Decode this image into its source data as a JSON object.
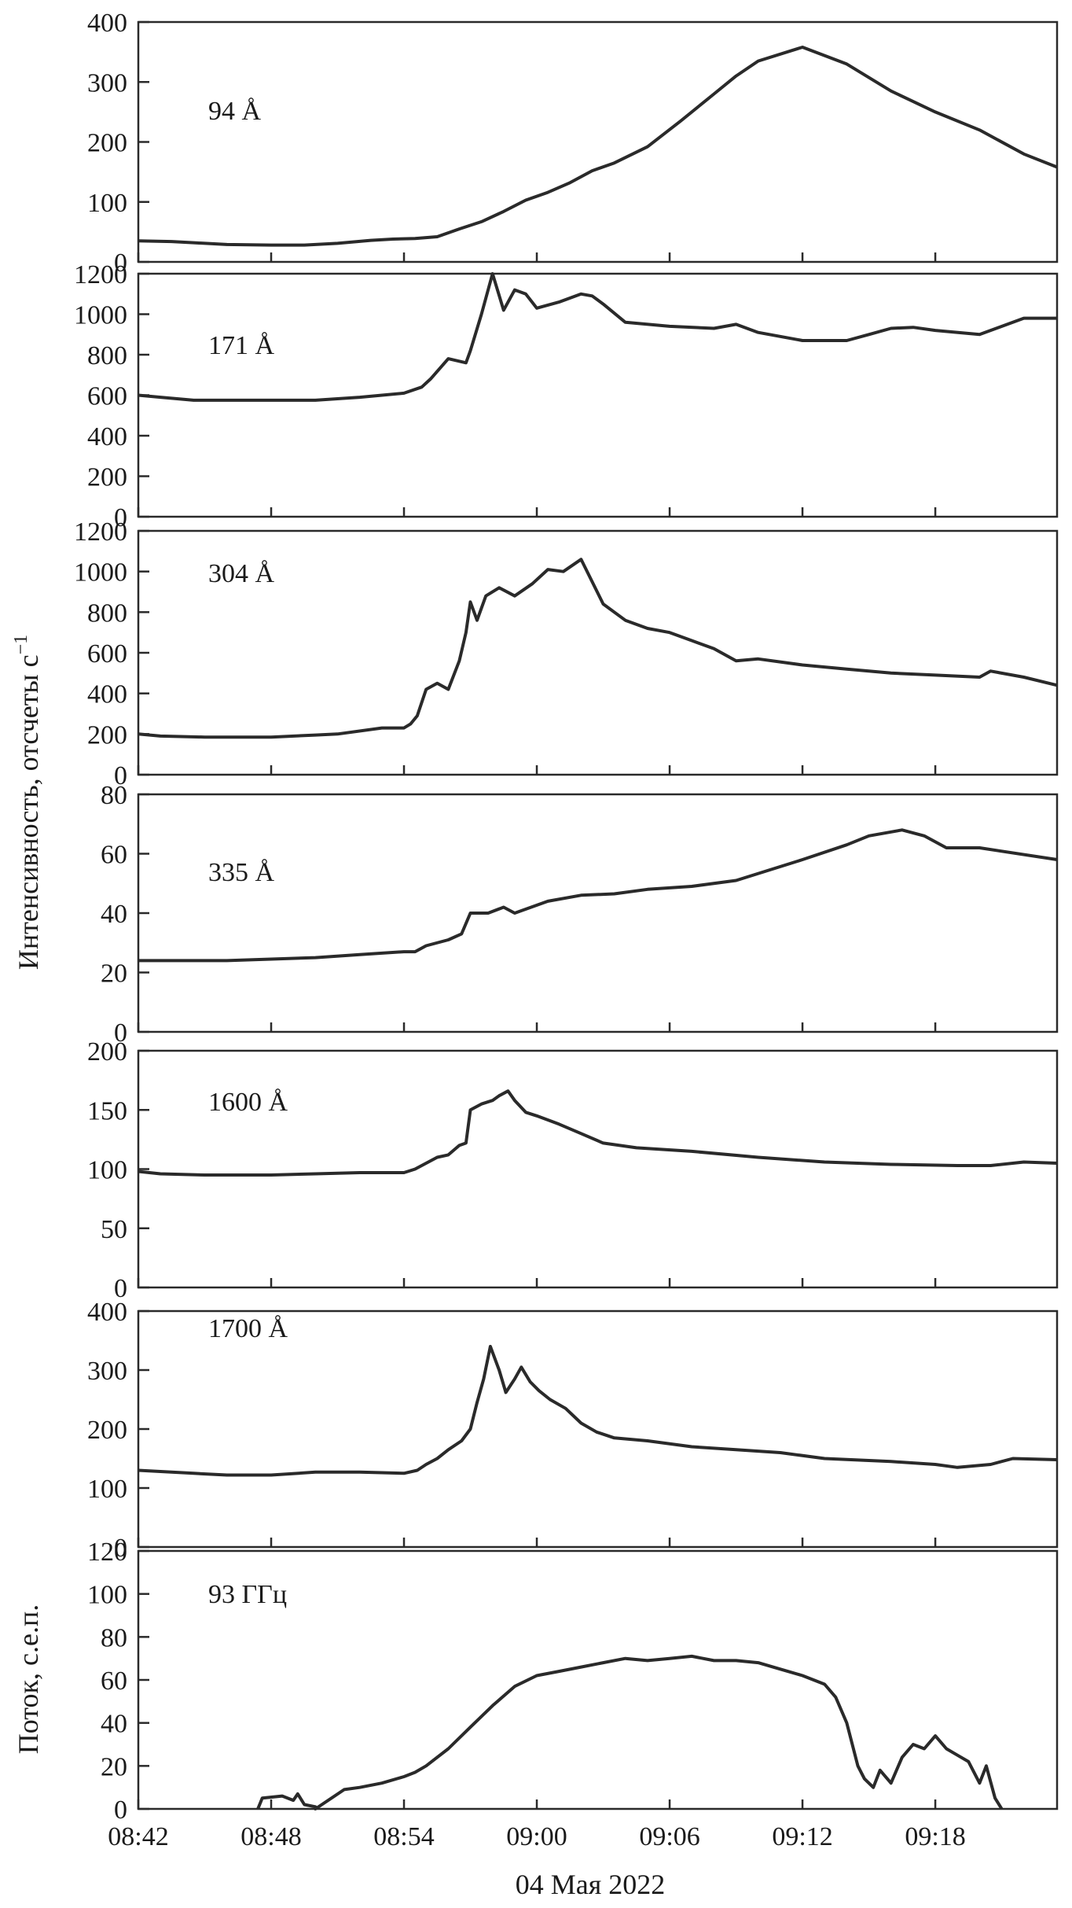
{
  "chart_data": [
    {
      "type": "line",
      "label": "94 Å",
      "ylim": [
        0,
        400
      ],
      "yticks": [
        "0",
        "100",
        "200",
        "300",
        "400"
      ],
      "x": [
        0,
        1.5,
        2.5,
        4,
        6,
        7.5,
        9,
        10.5,
        11.5,
        12.5,
        13.5,
        14.5,
        15.5,
        16.5,
        17.5,
        18.5,
        19.5,
        20.5,
        21.5,
        23,
        24.5,
        26,
        27,
        28,
        30,
        32,
        34,
        36,
        38,
        40,
        41.5
      ],
      "values": [
        35,
        34,
        32,
        29,
        28,
        28,
        31,
        36,
        38,
        39,
        42,
        55,
        67,
        84,
        103,
        116,
        132,
        152,
        165,
        192,
        235,
        280,
        310,
        335,
        358,
        330,
        285,
        250,
        220,
        180,
        158
      ]
    },
    {
      "type": "line",
      "label": "171 Å",
      "ylim": [
        0,
        1200
      ],
      "yticks": [
        "0",
        "200",
        "400",
        "600",
        "800",
        "1000",
        "1200"
      ],
      "x": [
        0,
        1,
        2.5,
        4,
        6,
        8,
        10,
        12,
        12.8,
        13.2,
        14,
        14.8,
        15,
        15.5,
        16,
        16.5,
        17,
        17.5,
        18,
        19,
        20,
        20.5,
        21,
        22,
        24,
        26,
        27,
        28,
        30,
        32,
        33,
        34,
        35,
        36,
        38,
        40,
        41.5
      ],
      "values": [
        600,
        590,
        575,
        575,
        575,
        575,
        590,
        610,
        640,
        680,
        780,
        760,
        820,
        1000,
        1200,
        1020,
        1120,
        1100,
        1030,
        1060,
        1100,
        1090,
        1050,
        960,
        940,
        930,
        950,
        910,
        870,
        870,
        900,
        930,
        935,
        920,
        900,
        980,
        980
      ]
    },
    {
      "type": "line",
      "label": "304 Å",
      "ylim": [
        0,
        1200
      ],
      "yticks": [
        "0",
        "200",
        "400",
        "600",
        "800",
        "1000",
        "1200"
      ],
      "x": [
        0,
        1,
        3,
        6,
        8,
        9,
        11,
        12,
        12.3,
        12.6,
        13,
        13.5,
        14,
        14.5,
        14.8,
        15,
        15.3,
        15.7,
        16.3,
        17,
        17.8,
        18.5,
        19.2,
        20,
        21,
        22,
        23,
        24,
        25,
        26,
        27,
        28,
        30,
        32,
        34,
        36,
        38,
        38.5,
        40,
        41.5
      ],
      "values": [
        200,
        190,
        185,
        185,
        195,
        200,
        230,
        230,
        250,
        290,
        420,
        450,
        420,
        560,
        700,
        850,
        760,
        880,
        920,
        880,
        940,
        1010,
        1000,
        1060,
        840,
        760,
        720,
        700,
        660,
        620,
        560,
        570,
        540,
        520,
        500,
        490,
        480,
        510,
        480,
        440
      ]
    },
    {
      "type": "line",
      "label": "335 Å",
      "ylim": [
        0,
        80
      ],
      "yticks": [
        "0",
        "20",
        "40",
        "60",
        "80"
      ],
      "x": [
        0,
        2,
        4,
        6,
        8,
        10,
        12,
        12.5,
        13,
        14,
        14.6,
        15,
        15.8,
        16.5,
        17,
        18.5,
        20,
        21.5,
        23,
        25,
        27,
        30,
        32,
        33,
        34.5,
        35.5,
        36.5,
        38,
        41.5
      ],
      "values": [
        24,
        24,
        24,
        24.5,
        25,
        26,
        27,
        27,
        29,
        31,
        33,
        40,
        40,
        42,
        40,
        44,
        46,
        46.5,
        48,
        49,
        51,
        58,
        63,
        66,
        68,
        66,
        62,
        62,
        58
      ]
    },
    {
      "type": "line",
      "label": "1600 Å",
      "ylim": [
        0,
        200
      ],
      "yticks": [
        "0",
        "50",
        "100",
        "150",
        "200"
      ],
      "x": [
        0,
        1,
        3,
        6,
        8,
        10,
        12,
        12.5,
        13,
        13.5,
        14,
        14.5,
        14.8,
        15,
        15.5,
        16,
        16.3,
        16.7,
        17,
        17.5,
        18,
        19,
        20,
        21,
        22.5,
        25,
        28,
        31,
        34,
        37,
        38.5,
        40,
        41.5
      ],
      "values": [
        98,
        96,
        95,
        95,
        96,
        97,
        97,
        100,
        105,
        110,
        112,
        120,
        122,
        150,
        155,
        158,
        162,
        166,
        158,
        148,
        145,
        138,
        130,
        122,
        118,
        115,
        110,
        106,
        104,
        103,
        103,
        106,
        105
      ]
    },
    {
      "type": "line",
      "label": "1700 Å",
      "ylim": [
        0,
        400
      ],
      "yticks": [
        "0",
        "100",
        "200",
        "300",
        "400"
      ],
      "x": [
        0,
        1,
        2.5,
        4,
        6,
        8,
        10,
        12,
        12.6,
        13,
        13.5,
        14,
        14.6,
        15,
        15.3,
        15.6,
        15.9,
        16.3,
        16.6,
        17,
        17.3,
        17.7,
        18.1,
        18.6,
        19.3,
        20,
        20.7,
        21.5,
        23,
        25,
        27,
        29,
        31,
        34,
        36,
        37,
        38.5,
        39.5,
        41.5
      ],
      "values": [
        130,
        128,
        125,
        122,
        122,
        127,
        127,
        125,
        130,
        140,
        150,
        165,
        180,
        200,
        245,
        285,
        340,
        300,
        262,
        285,
        305,
        280,
        265,
        250,
        235,
        210,
        195,
        185,
        180,
        170,
        165,
        160,
        150,
        145,
        140,
        135,
        140,
        150,
        148
      ]
    },
    {
      "type": "line",
      "label": "93 ГГц",
      "ylim": [
        0,
        120
      ],
      "yticks": [
        "0",
        "20",
        "40",
        "60",
        "80",
        "100",
        "120"
      ],
      "x": [
        5.4,
        5.6,
        6.5,
        7,
        7.2,
        7.5,
        8,
        8,
        9.3,
        10,
        11,
        12,
        12.5,
        13,
        14,
        15,
        16,
        17,
        18,
        19,
        20,
        21,
        22,
        23,
        24,
        25,
        26,
        27,
        28,
        29,
        30,
        31,
        31.5,
        32,
        32.5,
        32.8,
        33.2,
        33.5,
        34,
        34.5,
        35,
        35.5,
        36,
        36.5,
        37,
        37.5,
        38,
        38.3,
        38.7,
        39
      ],
      "values": [
        0,
        5,
        6,
        4,
        7,
        2,
        1,
        0,
        9,
        10,
        12,
        15,
        17,
        20,
        28,
        38,
        48,
        57,
        62,
        64,
        66,
        68,
        70,
        69,
        70,
        71,
        69,
        69,
        68,
        65,
        62,
        58,
        52,
        40,
        20,
        14,
        10,
        18,
        12,
        24,
        30,
        28,
        34,
        28,
        25,
        22,
        12,
        20,
        5,
        0
      ]
    }
  ],
  "x_axis": {
    "range_minutes": [
      0,
      41.5
    ],
    "ticks": [
      {
        "minute": 0,
        "label": "08:42"
      },
      {
        "minute": 6,
        "label": "08:48"
      },
      {
        "minute": 12,
        "label": "08:54"
      },
      {
        "minute": 18,
        "label": "09:00"
      },
      {
        "minute": 24,
        "label": "09:06"
      },
      {
        "minute": 30,
        "label": "09:12"
      },
      {
        "minute": 36,
        "label": "09:18"
      }
    ],
    "title": "04 Мая 2022"
  },
  "y_titles": {
    "intensity": "Интенсивность, отсчеты с",
    "intensity_sup": "−1",
    "flux": "Поток, с.е.п."
  },
  "colors": {
    "line": "#2a2a2a",
    "background": "#ffffff"
  }
}
